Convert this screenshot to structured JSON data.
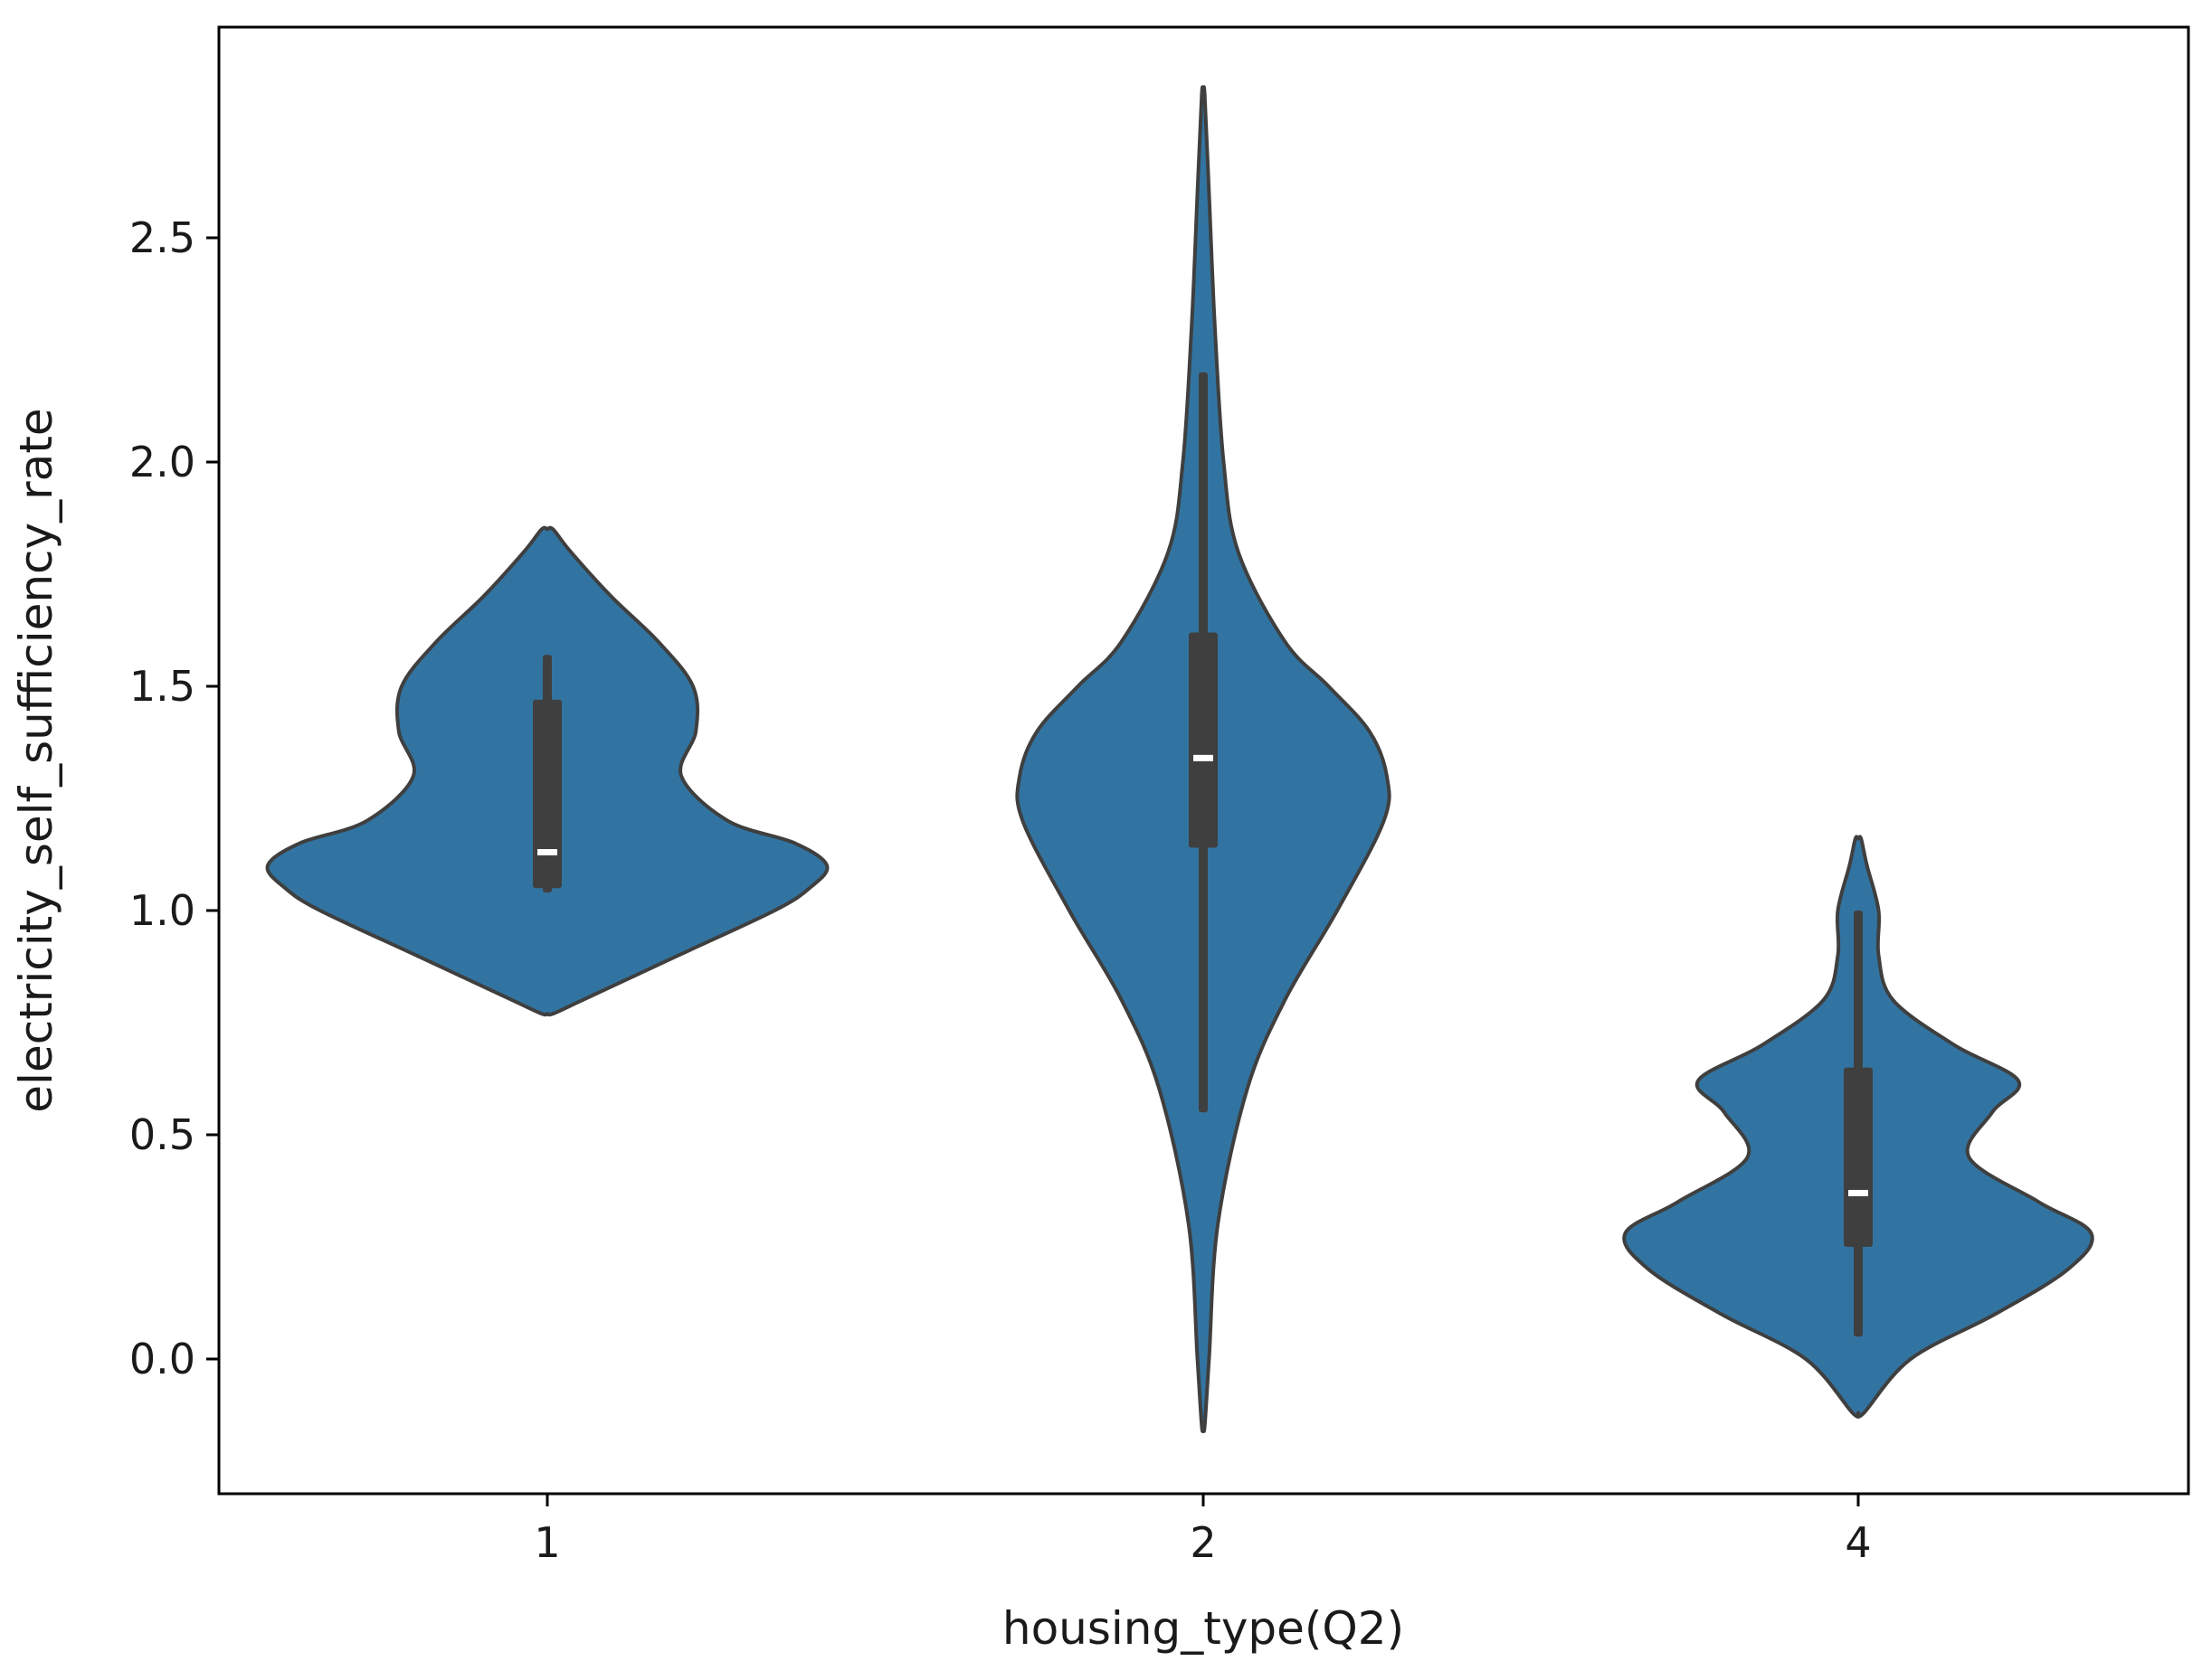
{
  "chart_data": {
    "type": "violin",
    "title": "",
    "xlabel": "housing_type(Q2)",
    "ylabel": "electricity_self_sufficiency_rate",
    "categories": [
      "1",
      "2",
      "4"
    ],
    "ylim": [
      -0.3,
      2.9
    ],
    "yticks": [
      0.0,
      0.5,
      1.0,
      1.5,
      2.0,
      2.5
    ],
    "ytick_labels": [
      "0.0",
      "0.5",
      "1.0",
      "1.5",
      "2.0",
      "2.5"
    ],
    "grid": false,
    "colors": {
      "violin_fill": "#3274a1",
      "violin_edge": "#3f3f3f",
      "box": "#3f3f3f",
      "median": "#ffffff",
      "axes": "#000000"
    },
    "violins": [
      {
        "category": "1",
        "range": [
          0.77,
          1.85
        ],
        "quartiles": [
          1.05,
          1.13,
          1.47
        ],
        "whiskers": [
          1.04,
          1.57
        ],
        "density": [
          [
            0.77,
            0.02
          ],
          [
            0.8,
            0.12
          ],
          [
            0.9,
            0.45
          ],
          [
            1.0,
            0.78
          ],
          [
            1.05,
            0.9
          ],
          [
            1.1,
            0.96
          ],
          [
            1.15,
            0.85
          ],
          [
            1.2,
            0.62
          ],
          [
            1.3,
            0.46
          ],
          [
            1.4,
            0.51
          ],
          [
            1.5,
            0.5
          ],
          [
            1.6,
            0.38
          ],
          [
            1.7,
            0.22
          ],
          [
            1.8,
            0.08
          ],
          [
            1.85,
            0.02
          ]
        ]
      },
      {
        "category": "2",
        "range": [
          -0.15,
          2.82
        ],
        "quartiles": [
          1.14,
          1.34,
          1.62
        ],
        "whiskers": [
          0.55,
          2.2
        ],
        "density": [
          [
            -0.15,
            0.005
          ],
          [
            0.0,
            0.02
          ],
          [
            0.3,
            0.05
          ],
          [
            0.6,
            0.15
          ],
          [
            0.8,
            0.28
          ],
          [
            1.0,
            0.46
          ],
          [
            1.2,
            0.62
          ],
          [
            1.3,
            0.63
          ],
          [
            1.4,
            0.57
          ],
          [
            1.5,
            0.43
          ],
          [
            1.6,
            0.28
          ],
          [
            1.8,
            0.12
          ],
          [
            2.0,
            0.07
          ],
          [
            2.3,
            0.04
          ],
          [
            2.6,
            0.02
          ],
          [
            2.82,
            0.005
          ]
        ]
      },
      {
        "category": "4",
        "range": [
          -0.12,
          1.16
        ],
        "quartiles": [
          0.25,
          0.37,
          0.65
        ],
        "whiskers": [
          0.05,
          1.0
        ],
        "density": [
          [
            -0.12,
            0.02
          ],
          [
            0.0,
            0.18
          ],
          [
            0.1,
            0.47
          ],
          [
            0.2,
            0.72
          ],
          [
            0.28,
            0.8
          ],
          [
            0.35,
            0.62
          ],
          [
            0.45,
            0.38
          ],
          [
            0.55,
            0.46
          ],
          [
            0.62,
            0.55
          ],
          [
            0.7,
            0.33
          ],
          [
            0.8,
            0.12
          ],
          [
            0.9,
            0.07
          ],
          [
            1.0,
            0.07
          ],
          [
            1.1,
            0.03
          ],
          [
            1.16,
            0.01
          ]
        ]
      }
    ]
  }
}
